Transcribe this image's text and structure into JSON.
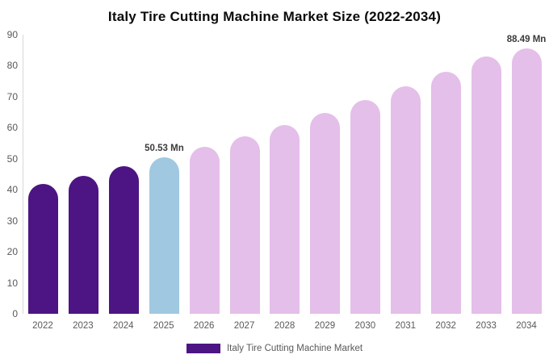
{
  "chart_data": {
    "type": "bar",
    "title": "Italy Tire Cutting Machine Market Size (2022-2034)",
    "unit": "Mn",
    "categories": [
      "2022",
      "2023",
      "2024",
      "2025",
      "2026",
      "2027",
      "2028",
      "2029",
      "2030",
      "2031",
      "2032",
      "2033",
      "2034"
    ],
    "values": [
      41.9,
      44.6,
      47.5,
      50.53,
      53.8,
      57.2,
      60.9,
      64.8,
      69.0,
      73.4,
      78.1,
      83.1,
      88.49
    ],
    "bar_colors": [
      "#4C1583",
      "#4C1583",
      "#4C1583",
      "#A0C8E0",
      "#E4BFE9",
      "#E4BFE9",
      "#E4BFE9",
      "#E4BFE9",
      "#E4BFE9",
      "#E4BFE9",
      "#E4BFE9",
      "#E4BFE9",
      "#E4BFE9"
    ],
    "value_labels": {
      "2025": "50.53 Mn",
      "2034": "88.49 Mn"
    },
    "ylim": [
      0,
      90
    ],
    "yticks": [
      0,
      10,
      20,
      30,
      40,
      50,
      60,
      70,
      80,
      90
    ],
    "xlabel": "",
    "ylabel": "",
    "grid": false,
    "axis_color": "#d9d9d9",
    "colors": {
      "historical": "#4C1583",
      "base_year": "#A0C8E0",
      "forecast": "#E4BFE9"
    },
    "legend": {
      "position": "bottom",
      "items": [
        {
          "label": "Italy Tire Cutting Machine Market",
          "color": "#4C1583"
        }
      ]
    }
  }
}
